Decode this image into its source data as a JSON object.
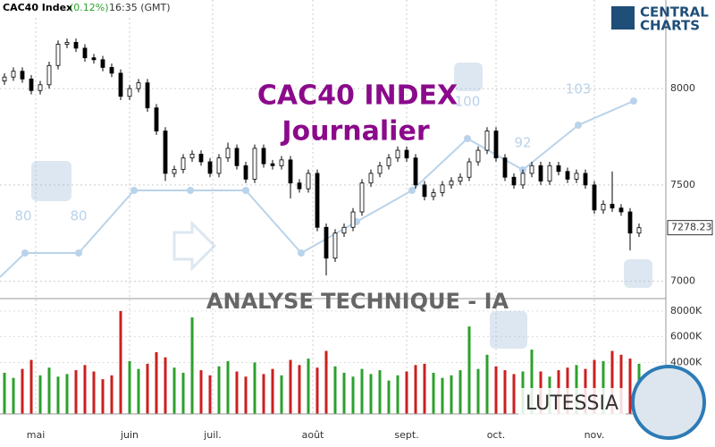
{
  "header": {
    "name": "CAC40 Index",
    "change": "(0.12%)",
    "time": "16:35 (GMT)"
  },
  "logo": {
    "line1": "CENTRAL",
    "line2": "CHARTS"
  },
  "watermark": {
    "title": "CAC40 INDEX",
    "subtitle": "Journalier",
    "banner": "ANALYSE TECHNIQUE - IA",
    "brand": "LUTESSIA"
  },
  "indicator_labels": [
    "80",
    "80",
    "100",
    "92",
    "103"
  ],
  "chart_data": [
    {
      "type": "candlestick",
      "up_color": "#000000",
      "down_color": "#000000",
      "open": [
        8040,
        8060,
        8090,
        8050,
        7990,
        8020,
        8120,
        8230,
        8240,
        8210,
        8160,
        8150,
        8110,
        8080,
        7960,
        8000,
        8030,
        7900,
        7780,
        7560,
        7580,
        7640,
        7660,
        7620,
        7560,
        7640,
        7690,
        7600,
        7530,
        7690,
        7610,
        7600,
        7630,
        7510,
        7480,
        7560,
        7280,
        7120,
        7250,
        7280,
        7360,
        7510,
        7560,
        7600,
        7640,
        7680,
        7640,
        7500,
        7440,
        7460,
        7500,
        7520,
        7540,
        7620,
        7680,
        7780,
        7640,
        7540,
        7500,
        7560,
        7600,
        7520,
        7600,
        7570,
        7530,
        7560,
        7500,
        7370,
        7400,
        7380,
        7360,
        7250
      ],
      "high": [
        8080,
        8110,
        8110,
        8070,
        8040,
        8140,
        8250,
        8260,
        8260,
        8230,
        8180,
        8170,
        8130,
        8100,
        8020,
        8050,
        8050,
        7920,
        7800,
        7600,
        7660,
        7680,
        7680,
        7640,
        7660,
        7720,
        7710,
        7620,
        7710,
        7710,
        7630,
        7650,
        7650,
        7530,
        7580,
        7580,
        7300,
        7270,
        7300,
        7380,
        7530,
        7580,
        7620,
        7660,
        7700,
        7700,
        7660,
        7520,
        7480,
        7520,
        7540,
        7560,
        7640,
        7700,
        7800,
        7800,
        7660,
        7560,
        7580,
        7620,
        7620,
        7620,
        7620,
        7590,
        7580,
        7580,
        7520,
        7420,
        7570,
        7400,
        7380,
        7300
      ],
      "low": [
        8020,
        8040,
        8030,
        7970,
        7970,
        8000,
        8100,
        8210,
        8190,
        8140,
        8130,
        8090,
        8060,
        7940,
        7940,
        7980,
        7880,
        7760,
        7520,
        7540,
        7560,
        7620,
        7600,
        7540,
        7540,
        7620,
        7580,
        7510,
        7510,
        7590,
        7580,
        7580,
        7430,
        7460,
        7460,
        7260,
        7030,
        7100,
        7230,
        7260,
        7340,
        7490,
        7540,
        7580,
        7620,
        7620,
        7480,
        7420,
        7420,
        7440,
        7480,
        7500,
        7520,
        7600,
        7660,
        7620,
        7520,
        7480,
        7480,
        7540,
        7500,
        7500,
        7550,
        7510,
        7510,
        7480,
        7350,
        7350,
        7360,
        7340,
        7160,
        7230
      ],
      "close": [
        8060,
        8090,
        8050,
        7990,
        8020,
        8120,
        8230,
        8240,
        8210,
        8160,
        8150,
        8110,
        8080,
        7960,
        8000,
        8030,
        7900,
        7780,
        7560,
        7580,
        7640,
        7660,
        7620,
        7560,
        7640,
        7690,
        7600,
        7530,
        7690,
        7610,
        7600,
        7630,
        7510,
        7480,
        7560,
        7280,
        7120,
        7250,
        7280,
        7360,
        7510,
        7560,
        7600,
        7640,
        7680,
        7640,
        7500,
        7440,
        7460,
        7500,
        7520,
        7540,
        7620,
        7680,
        7780,
        7640,
        7540,
        7500,
        7560,
        7600,
        7520,
        7600,
        7570,
        7530,
        7560,
        7500,
        7370,
        7400,
        7380,
        7360,
        7250,
        7278
      ],
      "last_price": 7278.23,
      "ylim": [
        6910,
        8460
      ],
      "yticks": [
        7000,
        7500,
        8000
      ],
      "xticks": [
        {
          "value": 3.5,
          "label": "mai"
        },
        {
          "value": 14,
          "label": "juin"
        },
        {
          "value": 23.3,
          "label": "juil."
        },
        {
          "value": 34.5,
          "label": "août"
        },
        {
          "value": 45,
          "label": "sept."
        },
        {
          "value": 55,
          "label": "oct."
        },
        {
          "value": 66,
          "label": "nov."
        }
      ],
      "grid": true
    },
    {
      "type": "volume",
      "up_color": "#2ca02c",
      "down_color": "#cc1f1f",
      "values": [
        3200,
        2800,
        3500,
        4200,
        3000,
        3600,
        2900,
        3100,
        3400,
        3800,
        3300,
        2700,
        3000,
        8000,
        4100,
        3500,
        3900,
        4800,
        4400,
        3600,
        3200,
        7500,
        3400,
        3000,
        3700,
        4100,
        3300,
        2900,
        4000,
        3100,
        3500,
        3000,
        4200,
        3800,
        4300,
        3600,
        4900,
        3700,
        3200,
        2900,
        3500,
        3100,
        3400,
        2600,
        3000,
        3300,
        3800,
        3900,
        3200,
        2800,
        3000,
        3400,
        6800,
        3500,
        4600,
        3700,
        3400,
        3100,
        3300,
        5000,
        3300,
        2900,
        3400,
        3600,
        3800,
        3500,
        4200,
        4100,
        4900,
        4600,
        4300,
        3900
      ],
      "ylim": [
        0,
        8550
      ],
      "yticks": [
        {
          "value": 4000,
          "label": "4000K"
        },
        {
          "value": 6000,
          "label": "6000K"
        },
        {
          "value": 8000,
          "label": "8000K"
        }
      ]
    }
  ]
}
